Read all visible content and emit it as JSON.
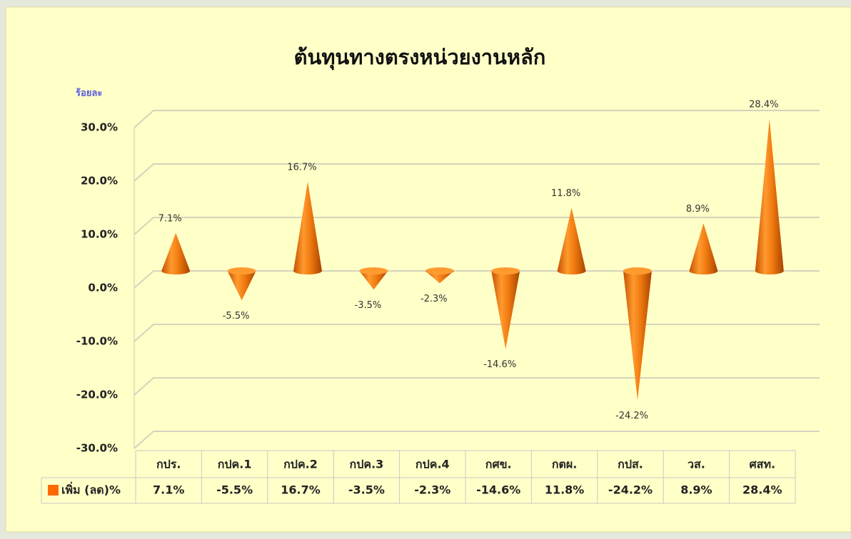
{
  "chart_data": {
    "type": "bar",
    "title": "ต้นทุนทางตรงหน่วยงานหลัก",
    "y_label": "ร้อยละ",
    "categories": [
      "กปร.",
      "กปค.1",
      "กปค.2",
      "กปค.3",
      "กปค.4",
      "กศข.",
      "กตผ.",
      "กปส.",
      "วส.",
      "ศสท."
    ],
    "series": [
      {
        "name": "เพิ่ม (ลด)%",
        "color": "#ff6a00",
        "values": [
          7.1,
          -5.5,
          16.7,
          -3.5,
          -2.3,
          -14.6,
          11.8,
          -24.2,
          8.9,
          28.4
        ],
        "value_labels": [
          "7.1%",
          "-5.5%",
          "16.7%",
          "-3.5%",
          "-2.3%",
          "-14.6%",
          "11.8%",
          "-24.2%",
          "8.9%",
          "28.4%"
        ]
      }
    ],
    "ylim": [
      -30,
      30
    ],
    "yticks": [
      {
        "value": -30,
        "label": "-30.0%"
      },
      {
        "value": -20,
        "label": "-20.0%"
      },
      {
        "value": -10,
        "label": "-10.0%"
      },
      {
        "value": 0,
        "label": "0.0%"
      },
      {
        "value": 10,
        "label": "10.0%"
      },
      {
        "value": 20,
        "label": "20.0%"
      },
      {
        "value": 30,
        "label": "30.0%"
      }
    ],
    "grid": true
  }
}
